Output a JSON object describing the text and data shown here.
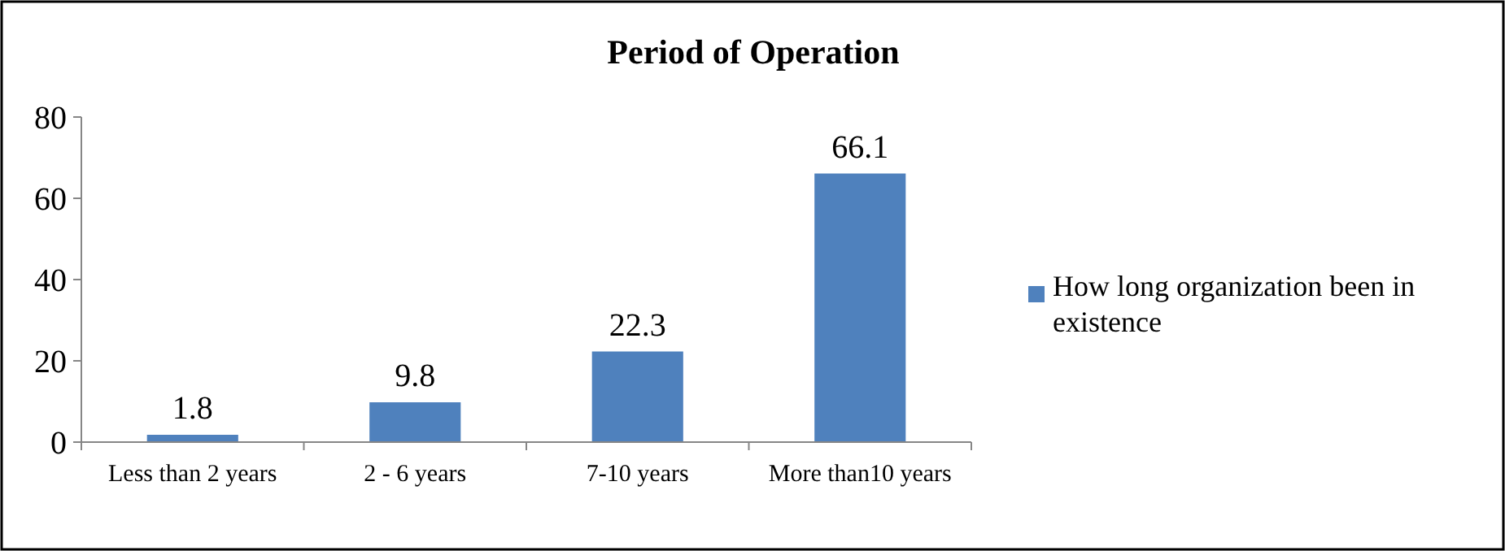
{
  "chart_data": {
    "type": "bar",
    "title": "Period of Operation",
    "categories": [
      "Less than 2 years",
      "2 - 6 years",
      "7-10 years",
      "More than10 years"
    ],
    "series": [
      {
        "name": "How long organization been in existence",
        "color": "#4f81bd",
        "values": [
          1.8,
          9.8,
          22.3,
          66.1
        ]
      }
    ],
    "ylim": [
      0,
      80
    ],
    "yticks": [
      0,
      20,
      40,
      60,
      80
    ],
    "grid": false,
    "legend": "right",
    "data_labels": true
  }
}
